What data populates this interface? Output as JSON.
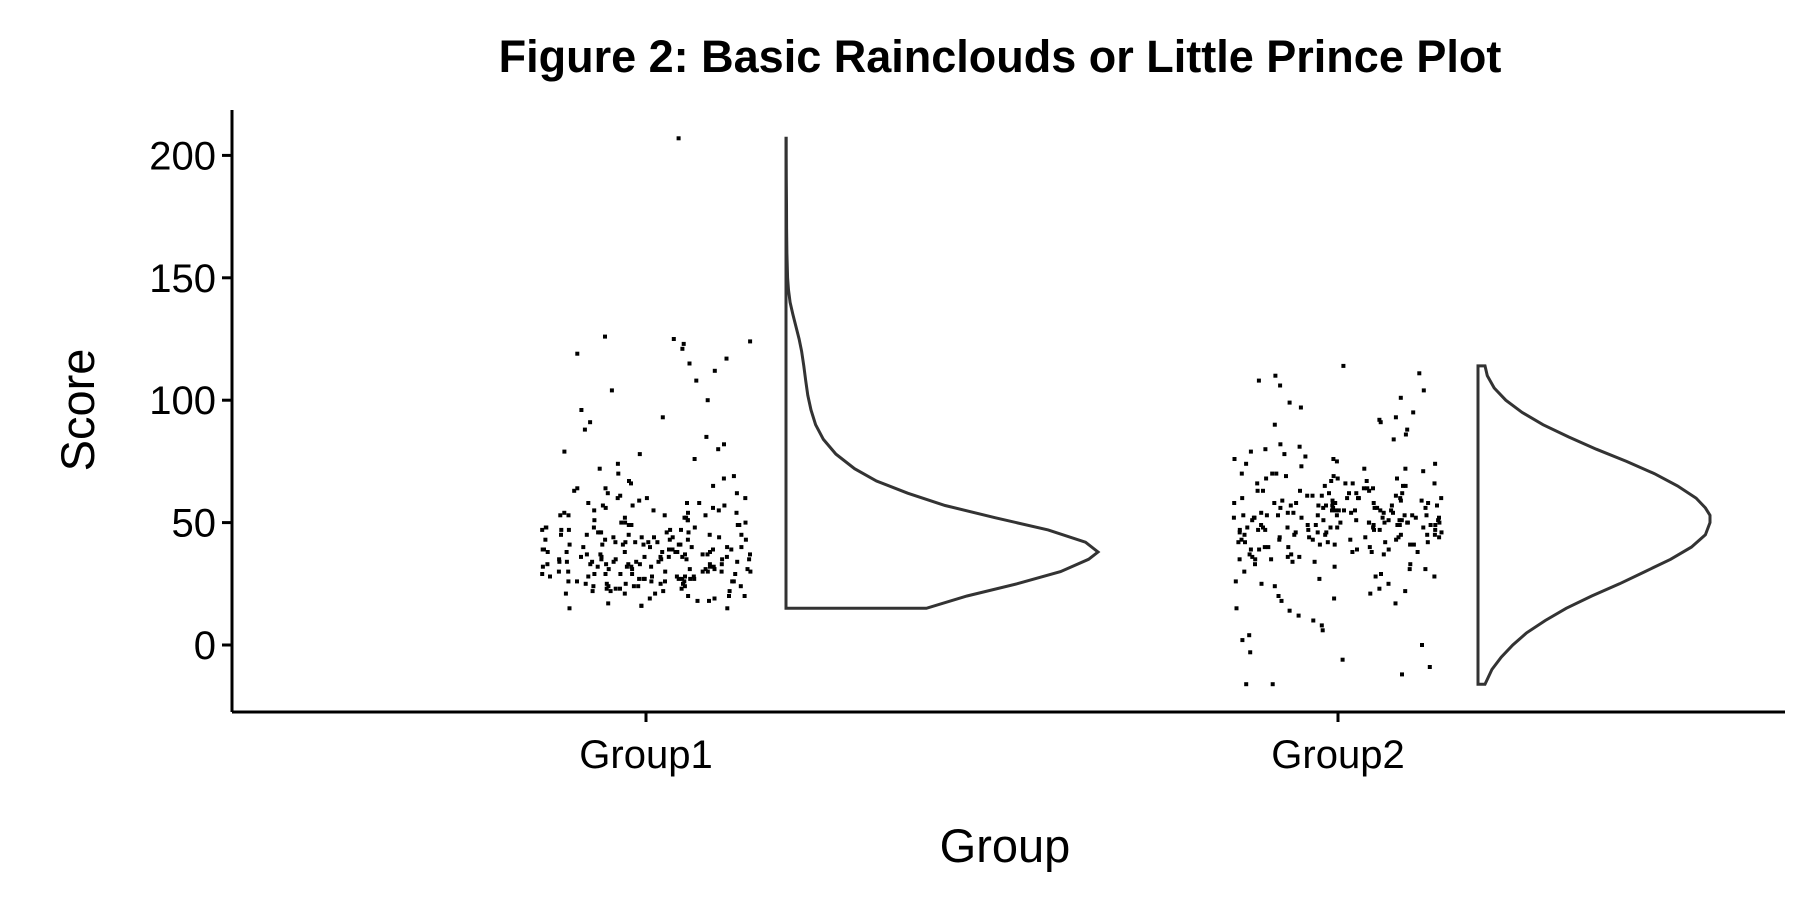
{
  "chart_data": {
    "type": "raincloud",
    "title": "Figure 2: Basic Rainclouds or Little Prince Plot",
    "xlabel": "Group",
    "ylabel": "Score",
    "ylim": [
      -27,
      218
    ],
    "yticks": [
      0,
      50,
      100,
      150,
      200
    ],
    "grid": false,
    "legend": "none",
    "categories": [
      "Group1",
      "Group2"
    ],
    "series": [
      {
        "category": "Group1",
        "color": "#000000",
        "points": [
          207,
          126,
          125,
          124,
          123,
          121,
          119,
          117,
          115,
          112,
          108,
          104,
          100,
          96,
          93,
          91,
          88,
          85,
          82,
          80,
          79,
          78,
          76,
          74,
          72,
          70,
          69,
          68,
          67,
          66,
          65,
          64,
          63,
          62,
          61,
          60,
          60,
          59,
          58,
          58,
          57,
          57,
          56,
          56,
          55,
          55,
          54,
          54,
          53,
          53,
          52,
          52,
          51,
          51,
          50,
          50,
          49,
          49,
          49,
          48,
          48,
          47,
          47,
          47,
          46,
          46,
          45,
          45,
          45,
          44,
          44,
          44,
          43,
          43,
          43,
          42,
          42,
          42,
          41,
          41,
          41,
          40,
          40,
          40,
          39,
          39,
          39,
          38,
          38,
          38,
          38,
          37,
          37,
          37,
          37,
          36,
          36,
          36,
          36,
          35,
          35,
          35,
          35,
          34,
          34,
          34,
          34,
          33,
          33,
          33,
          33,
          32,
          32,
          32,
          32,
          31,
          31,
          31,
          30,
          30,
          30,
          30,
          29,
          29,
          29,
          28,
          28,
          28,
          27,
          27,
          27,
          26,
          26,
          26,
          25,
          25,
          25,
          24,
          24,
          24,
          23,
          23,
          22,
          22,
          21,
          21,
          20,
          20,
          19,
          19,
          18,
          17,
          16,
          16,
          15,
          15,
          44,
          39,
          36,
          41,
          47,
          53,
          38,
          34,
          30,
          27,
          46,
          42,
          37,
          33,
          29,
          25,
          45,
          40,
          35,
          31,
          28,
          24,
          22,
          50,
          55,
          48,
          43,
          39,
          35,
          32,
          28,
          26,
          58,
          52,
          46,
          41,
          37,
          33,
          30,
          27,
          24,
          60,
          51,
          44,
          38,
          34,
          31,
          29,
          26,
          23,
          62,
          54,
          47,
          42,
          36,
          32,
          28,
          25,
          21,
          49,
          43,
          38,
          33,
          29,
          26,
          22,
          57,
          45,
          40,
          35,
          31,
          27,
          23,
          20,
          64,
          53,
          46,
          39,
          34,
          30,
          26,
          18,
          48,
          41,
          36,
          32,
          27,
          24
        ],
        "density": {
          "y": [
            15,
            20,
            25,
            30,
            35,
            38,
            42,
            47,
            52,
            57,
            62,
            67,
            72,
            78,
            84,
            90,
            96,
            102,
            108,
            114,
            120,
            125,
            130,
            135,
            140,
            145,
            150,
            160,
            170,
            180,
            190,
            200,
            207
          ],
          "density": [
            0.45,
            0.58,
            0.74,
            0.88,
            0.97,
            1.0,
            0.96,
            0.84,
            0.67,
            0.51,
            0.39,
            0.29,
            0.22,
            0.16,
            0.12,
            0.095,
            0.08,
            0.07,
            0.063,
            0.057,
            0.05,
            0.042,
            0.032,
            0.022,
            0.013,
            0.008,
            0.005,
            0.003,
            0.002,
            0.0015,
            0.001,
            0.0008,
            0.0005
          ]
        }
      },
      {
        "category": "Group2",
        "color": "#000000",
        "points": [
          114,
          111,
          110,
          108,
          106,
          104,
          101,
          99,
          97,
          95,
          93,
          92,
          91,
          90,
          88,
          86,
          84,
          82,
          80,
          79,
          78,
          77,
          76,
          75,
          74,
          73,
          72,
          71,
          70,
          70,
          69,
          68,
          68,
          67,
          66,
          66,
          65,
          65,
          64,
          64,
          63,
          63,
          62,
          62,
          61,
          61,
          60,
          60,
          60,
          59,
          59,
          58,
          58,
          58,
          57,
          57,
          57,
          56,
          56,
          56,
          55,
          55,
          55,
          54,
          54,
          54,
          53,
          53,
          53,
          53,
          52,
          52,
          52,
          52,
          51,
          51,
          51,
          51,
          50,
          50,
          50,
          50,
          49,
          49,
          49,
          49,
          48,
          48,
          48,
          48,
          47,
          47,
          47,
          47,
          46,
          46,
          46,
          45,
          45,
          45,
          44,
          44,
          44,
          43,
          43,
          43,
          42,
          42,
          42,
          41,
          41,
          41,
          40,
          40,
          40,
          39,
          39,
          38,
          38,
          37,
          37,
          36,
          36,
          35,
          35,
          34,
          33,
          33,
          32,
          31,
          30,
          29,
          28,
          27,
          26,
          25,
          24,
          23,
          22,
          21,
          20,
          19,
          18,
          17,
          15,
          14,
          12,
          10,
          8,
          6,
          4,
          2,
          0,
          -3,
          -6,
          -9,
          -12,
          -16,
          -16,
          56,
          53,
          49,
          61,
          45,
          58,
          51,
          47,
          63,
          55,
          42,
          59,
          50,
          66,
          46,
          54,
          38,
          57,
          52,
          44,
          69,
          48,
          60,
          36,
          55,
          62,
          41,
          53,
          72,
          47,
          58,
          34,
          51,
          65,
          43,
          56,
          49,
          74,
          39,
          60,
          52,
          45,
          67,
          54,
          31,
          57,
          48,
          63,
          50,
          40,
          76,
          55,
          46,
          59,
          53,
          28,
          61,
          44,
          56,
          70,
          49,
          37,
          58,
          51,
          64,
          47,
          42,
          54,
          81,
          25,
          52,
          60,
          48,
          57,
          35,
          66,
          50,
          45,
          53,
          62,
          39,
          55,
          43,
          49,
          68,
          58
        ],
        "density": {
          "y": [
            -16,
            -10,
            -5,
            0,
            5,
            10,
            15,
            20,
            25,
            30,
            35,
            40,
            45,
            50,
            53,
            56,
            60,
            65,
            70,
            75,
            80,
            85,
            90,
            95,
            100,
            105,
            110,
            114
          ],
          "density": [
            0.03,
            0.06,
            0.1,
            0.15,
            0.21,
            0.29,
            0.38,
            0.49,
            0.61,
            0.72,
            0.83,
            0.92,
            0.98,
            1.0,
            1.0,
            0.98,
            0.94,
            0.86,
            0.76,
            0.64,
            0.51,
            0.39,
            0.28,
            0.19,
            0.12,
            0.07,
            0.04,
            0.03
          ]
        }
      }
    ]
  }
}
